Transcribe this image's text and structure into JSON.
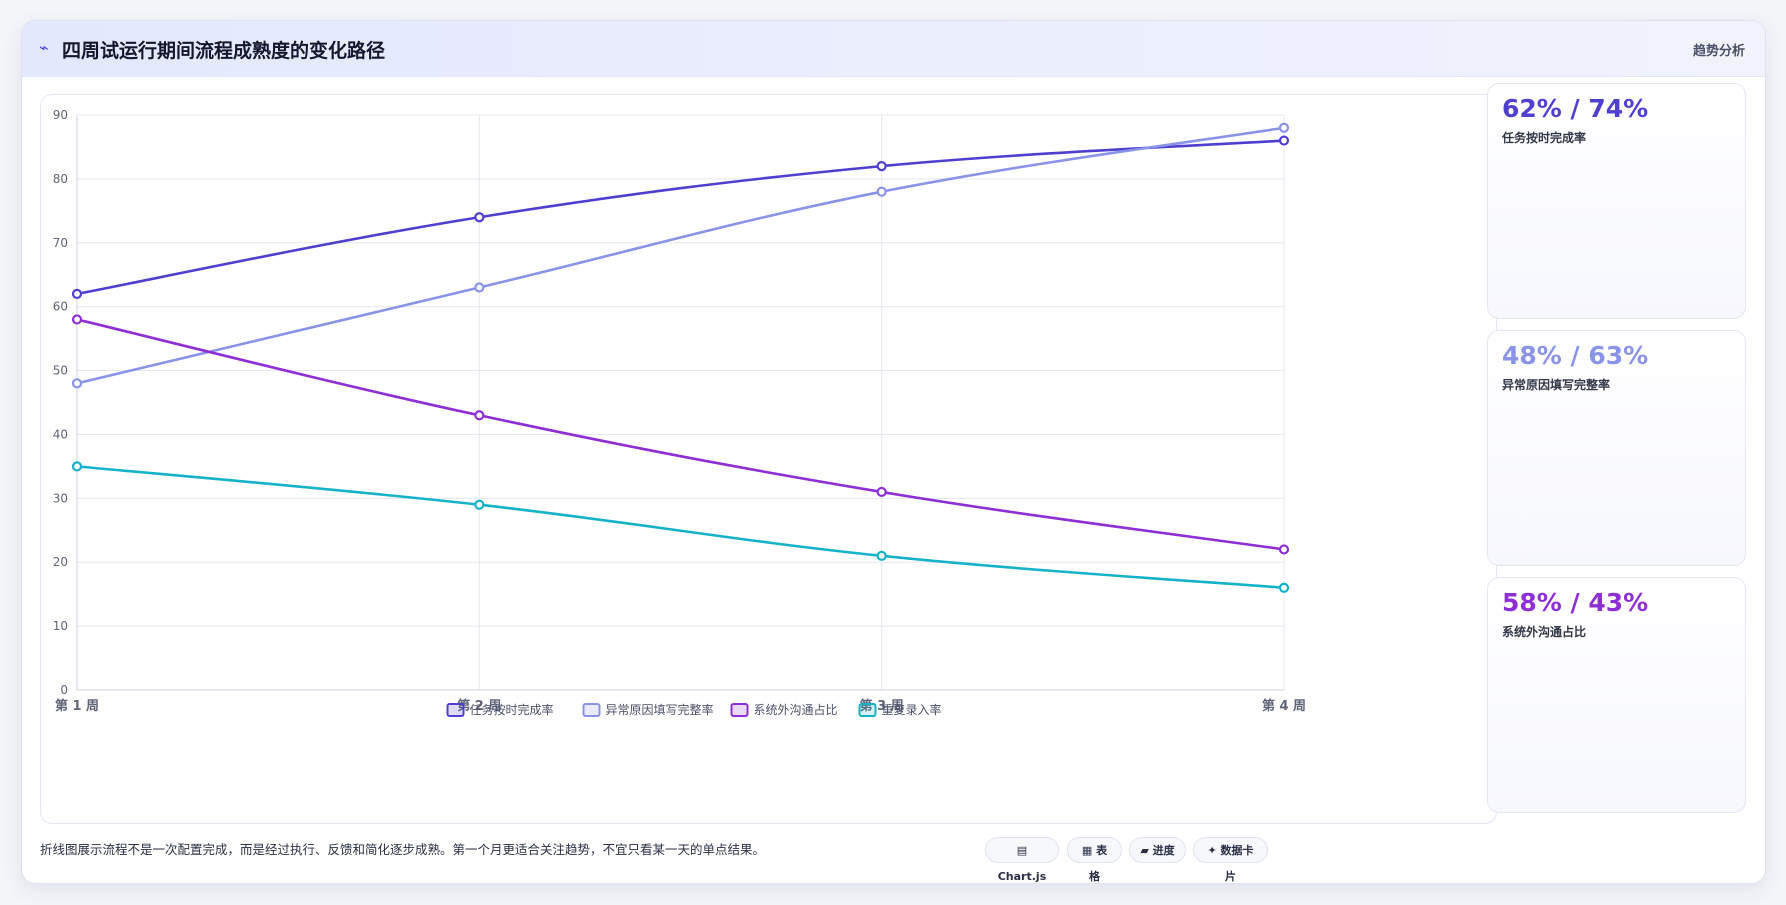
{
  "header": {
    "icon": "trend-icon",
    "title": "四周试运行期间流程成熟度的变化路径",
    "tag": "趋势分析"
  },
  "chart_data": {
    "type": "line",
    "title": "",
    "xlabel": "",
    "ylabel": "",
    "categories": [
      "第 1 周",
      "第 2 周",
      "第 3 周",
      "第 4 周"
    ],
    "ylim": [
      0,
      90
    ],
    "yticks": [
      0,
      10,
      20,
      30,
      40,
      50,
      60,
      70,
      80,
      90
    ],
    "grid": true,
    "legend_position": "bottom",
    "series": [
      {
        "name": "任务按时完成率",
        "values": [
          62,
          74,
          82,
          86
        ],
        "color": "#4f3fd0"
      },
      {
        "name": "异常原因填写完整率",
        "values": [
          48,
          63,
          78,
          88
        ],
        "color": "#8a93e8"
      },
      {
        "name": "系统外沟通占比",
        "values": [
          58,
          43,
          31,
          22
        ],
        "color": "#8e2fd6"
      },
      {
        "name": "重复录入率",
        "values": [
          35,
          29,
          21,
          16
        ],
        "color": "#16b2c8"
      }
    ]
  },
  "kpis": [
    {
      "value": "62% / 74%",
      "label": "任务按时完成率",
      "color": "#4f3fd0"
    },
    {
      "value": "48% / 63%",
      "label": "异常原因填写完整率",
      "color": "#8a93e8"
    },
    {
      "value": "58% / 43%",
      "label": "系统外沟通占比",
      "color": "#8e2fd6"
    }
  ],
  "footer": {
    "note": "折线图展示流程不是一次配置完成，而是经过执行、反馈和简化逐步成熟。第一个月更适合关注趋势，不宜只看某一天的单点结果。",
    "pills": [
      {
        "label": "▤ Chart.js",
        "icon": "chart-icon"
      },
      {
        "label": "▦ 表格",
        "icon": "table-icon"
      },
      {
        "label": "▰ 进度",
        "icon": "progress-icon"
      },
      {
        "label": "✦ 数据卡片",
        "icon": "card-icon"
      }
    ]
  }
}
